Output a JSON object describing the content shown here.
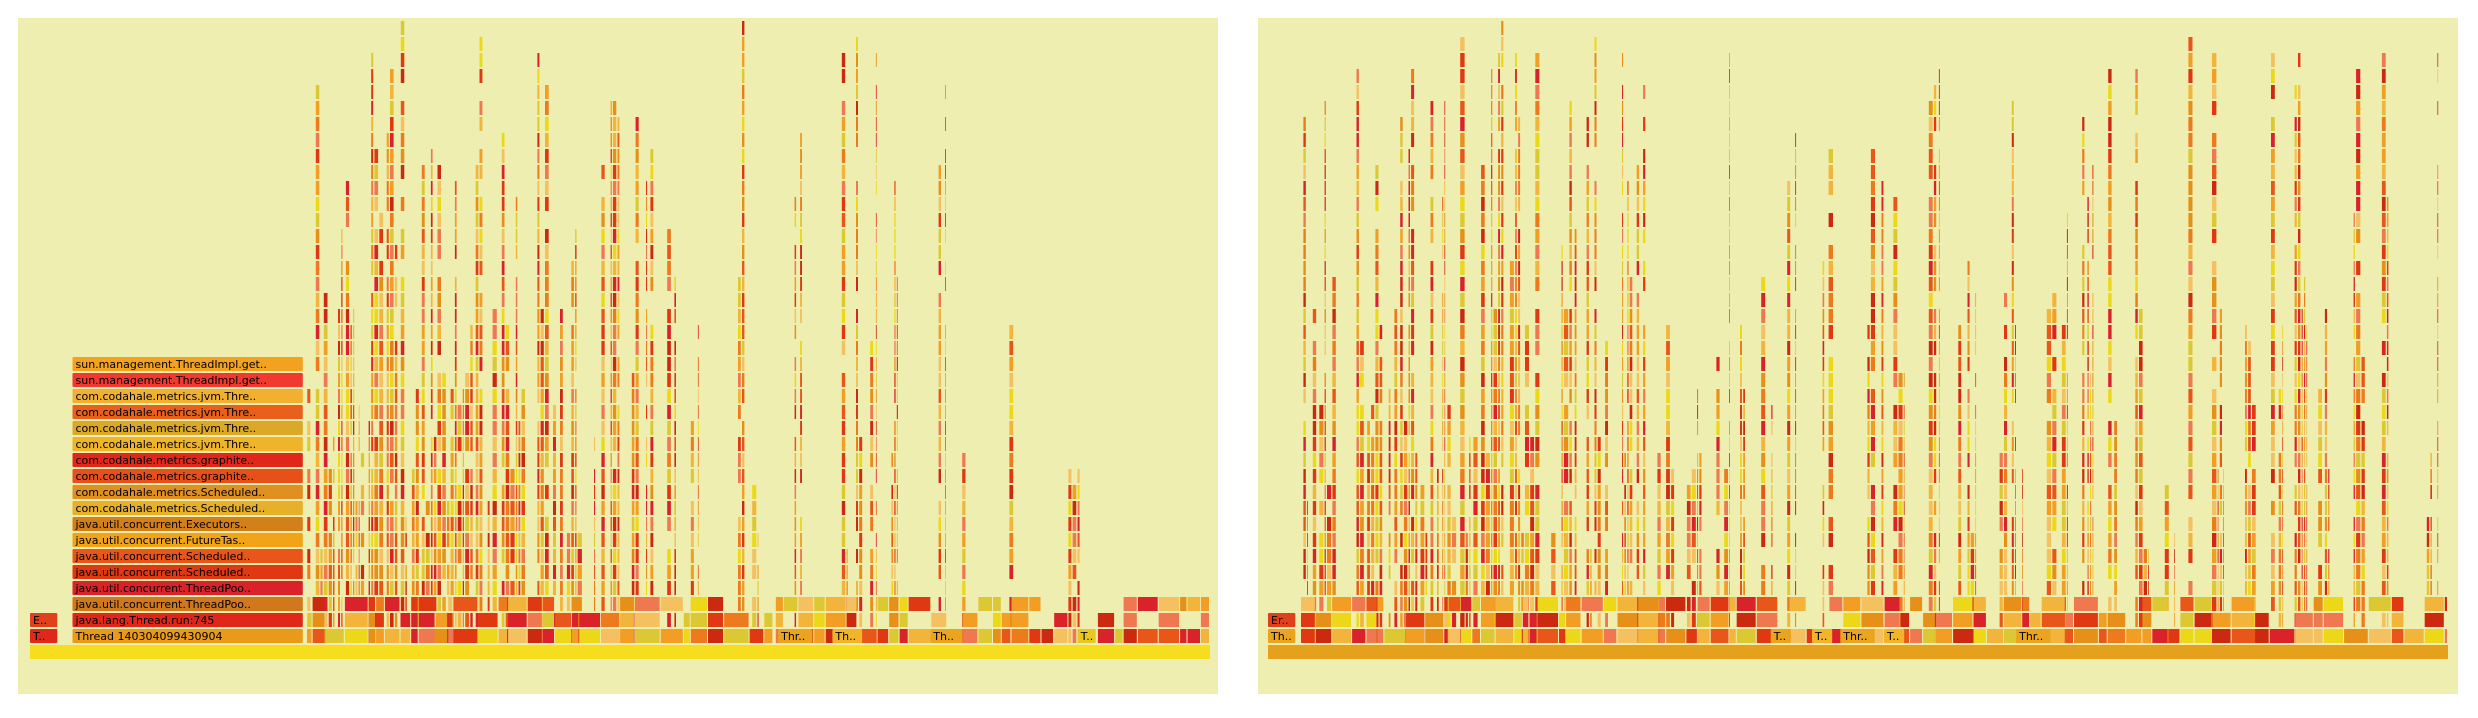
{
  "background": "#ffffff",
  "panel_background": "#eeeeb0",
  "palette": [
    "#e03812",
    "#e8561a",
    "#ee7a1e",
    "#f29d23",
    "#f2b43a",
    "#dcc832",
    "#ecd818",
    "#d9222a",
    "#f07850",
    "#e6901a",
    "#f4c060",
    "#cc2a10"
  ],
  "chart_data": [
    {
      "type": "flame_graph",
      "title": "",
      "root_color": "#f6de1e",
      "frames": [
        {
          "label": "Thread 140304099430904",
          "depth": 1,
          "x0": 0.036,
          "x1": 0.232,
          "color": "#e89a18"
        },
        {
          "label": "java.lang.Thread.run:745",
          "depth": 2,
          "x0": 0.036,
          "x1": 0.232,
          "color": "#e0281a"
        },
        {
          "label": "java.util.concurrent.ThreadPoo..",
          "depth": 3,
          "x0": 0.036,
          "x1": 0.232,
          "color": "#d2781c"
        },
        {
          "label": "java.util.concurrent.ThreadPoo..",
          "depth": 4,
          "x0": 0.036,
          "x1": 0.232,
          "color": "#d9222a"
        },
        {
          "label": "java.util.concurrent.Scheduled..",
          "depth": 5,
          "x0": 0.036,
          "x1": 0.232,
          "color": "#e03812"
        },
        {
          "label": "java.util.concurrent.Scheduled..",
          "depth": 6,
          "x0": 0.036,
          "x1": 0.232,
          "color": "#e8561a"
        },
        {
          "label": "java.util.concurrent.FutureTas..",
          "depth": 7,
          "x0": 0.036,
          "x1": 0.232,
          "color": "#f2a418"
        },
        {
          "label": "java.util.concurrent.Executors..",
          "depth": 8,
          "x0": 0.036,
          "x1": 0.232,
          "color": "#d4801a"
        },
        {
          "label": "com.codahale.metrics.Scheduled..",
          "depth": 9,
          "x0": 0.036,
          "x1": 0.232,
          "color": "#e6b02a"
        },
        {
          "label": "com.codahale.metrics.Scheduled..",
          "depth": 10,
          "x0": 0.036,
          "x1": 0.232,
          "color": "#e09020"
        },
        {
          "label": "com.codahale.metrics.graphite..",
          "depth": 11,
          "x0": 0.036,
          "x1": 0.232,
          "color": "#e8501a"
        },
        {
          "label": "com.codahale.metrics.graphite..",
          "depth": 12,
          "x0": 0.036,
          "x1": 0.232,
          "color": "#e0281a"
        },
        {
          "label": "com.codahale.metrics.jvm.Thre..",
          "depth": 13,
          "x0": 0.036,
          "x1": 0.232,
          "color": "#f0b428"
        },
        {
          "label": "com.codahale.metrics.jvm.Thre..",
          "depth": 14,
          "x0": 0.036,
          "x1": 0.232,
          "color": "#dca828"
        },
        {
          "label": "com.codahale.metrics.jvm.Thre..",
          "depth": 15,
          "x0": 0.036,
          "x1": 0.232,
          "color": "#e8601a"
        },
        {
          "label": "com.codahale.metrics.jvm.Thre..",
          "depth": 16,
          "x0": 0.036,
          "x1": 0.232,
          "color": "#f2b030"
        },
        {
          "label": "sun.management.ThreadImpl.get..",
          "depth": 17,
          "x0": 0.036,
          "x1": 0.232,
          "color": "#f03a30"
        },
        {
          "label": "sun.management.ThreadImpl.get..",
          "depth": 18,
          "x0": 0.036,
          "x1": 0.232,
          "color": "#f2a21e"
        },
        {
          "label": "E..",
          "depth": 2,
          "x0": 0.0,
          "x1": 0.024,
          "color": "#e0401a"
        },
        {
          "label": "T..",
          "depth": 1,
          "x0": 0.0,
          "x1": 0.024,
          "color": "#e0281a"
        },
        {
          "label": "Thr..",
          "depth": 1,
          "x0": 0.634,
          "x1": 0.664,
          "color": "#eaa41e"
        },
        {
          "label": "Th..",
          "depth": 1,
          "x0": 0.68,
          "x1": 0.706,
          "color": "#f2b42a"
        },
        {
          "label": "Th..",
          "depth": 1,
          "x0": 0.763,
          "x1": 0.791,
          "color": "#eaa41e"
        },
        {
          "label": "T..",
          "depth": 1,
          "x0": 0.888,
          "x1": 0.904,
          "color": "#e8c81e"
        }
      ],
      "band_segments": [
        [
          0.235,
          0.63
        ],
        [
          0.632,
          0.88
        ],
        [
          0.905,
          1.0
        ]
      ],
      "columns": [
        [
          0.235,
          0.33
        ],
        [
          0.332,
          0.39
        ],
        [
          0.392,
          0.42
        ],
        [
          0.43,
          0.452
        ],
        [
          0.455,
          0.47
        ],
        [
          0.478,
          0.488
        ],
        [
          0.492,
          0.5
        ],
        [
          0.51,
          0.52
        ],
        [
          0.522,
          0.53
        ],
        [
          0.54,
          0.548
        ],
        [
          0.56,
          0.566
        ],
        [
          0.6,
          0.606
        ],
        [
          0.612,
          0.618
        ],
        [
          0.648,
          0.658
        ],
        [
          0.688,
          0.694
        ],
        [
          0.7,
          0.706
        ],
        [
          0.712,
          0.718
        ],
        [
          0.73,
          0.736
        ],
        [
          0.77,
          0.776
        ],
        [
          0.79,
          0.796
        ],
        [
          0.83,
          0.834
        ],
        [
          0.88,
          0.89
        ]
      ]
    },
    {
      "type": "flame_graph",
      "title": "",
      "root_color": "#e6a11c",
      "frames": [
        {
          "label": "Th..",
          "depth": 1,
          "x0": 0.0,
          "x1": 0.024,
          "color": "#eaa41e"
        },
        {
          "label": "Er..",
          "depth": 2,
          "x0": 0.0,
          "x1": 0.024,
          "color": "#e0401a"
        },
        {
          "label": "T..",
          "depth": 1,
          "x0": 0.426,
          "x1": 0.444,
          "color": "#eaa41e"
        },
        {
          "label": "T..",
          "depth": 1,
          "x0": 0.461,
          "x1": 0.479,
          "color": "#f2b42a"
        },
        {
          "label": "Thr..",
          "depth": 1,
          "x0": 0.485,
          "x1": 0.515,
          "color": "#eaa41e"
        },
        {
          "label": "T..",
          "depth": 1,
          "x0": 0.522,
          "x1": 0.54,
          "color": "#f2b42a"
        },
        {
          "label": "Thr..",
          "depth": 1,
          "x0": 0.634,
          "x1": 0.664,
          "color": "#eaa41e"
        }
      ],
      "band_segments": [
        [
          0.028,
          1.0
        ]
      ],
      "columns": [
        [
          0.03,
          0.034
        ],
        [
          0.038,
          0.058
        ],
        [
          0.075,
          0.11
        ],
        [
          0.112,
          0.15
        ],
        [
          0.152,
          0.2
        ],
        [
          0.205,
          0.232
        ],
        [
          0.24,
          0.262
        ],
        [
          0.27,
          0.29
        ],
        [
          0.3,
          0.322
        ],
        [
          0.33,
          0.345
        ],
        [
          0.355,
          0.368
        ],
        [
          0.38,
          0.392
        ],
        [
          0.4,
          0.408
        ],
        [
          0.418,
          0.428
        ],
        [
          0.44,
          0.448
        ],
        [
          0.47,
          0.48
        ],
        [
          0.508,
          0.522
        ],
        [
          0.53,
          0.54
        ],
        [
          0.56,
          0.57
        ],
        [
          0.585,
          0.6
        ],
        [
          0.62,
          0.64
        ],
        [
          0.66,
          0.68
        ],
        [
          0.69,
          0.7
        ],
        [
          0.712,
          0.72
        ],
        [
          0.735,
          0.746
        ],
        [
          0.76,
          0.768
        ],
        [
          0.78,
          0.788
        ],
        [
          0.8,
          0.81
        ],
        [
          0.828,
          0.838
        ],
        [
          0.85,
          0.86
        ],
        [
          0.87,
          0.88
        ],
        [
          0.89,
          0.9
        ],
        [
          0.92,
          0.93
        ],
        [
          0.944,
          0.95
        ],
        [
          0.982,
          0.992
        ]
      ]
    }
  ]
}
